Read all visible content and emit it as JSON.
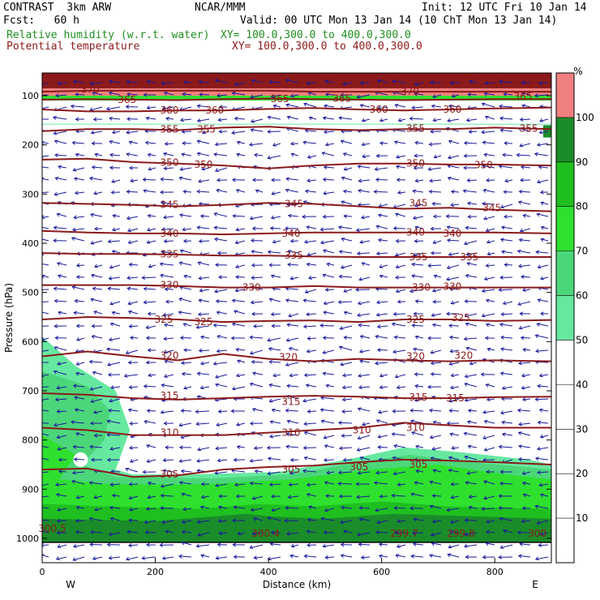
{
  "header": {
    "model": "CONTRAST  3km ARW",
    "org": "NCAR/MMM",
    "init": "Init: 12 UTC Fri 10 Jan 14",
    "fcst": "Fcst:   60 h",
    "valid": "Valid: 00 UTC Mon 13 Jan 14 (10 ChT Mon 13 Jan 14)",
    "field1": "Relative humidity (w.r.t. water)",
    "field1_xy": "XY= 100.0,300.0 to 400.0,300.0",
    "field2": "Potential temperature",
    "field2_xy": "XY= 100.0,300.0 to 400.0,300.0",
    "field1_color": "#1f8f1f",
    "field2_color": "#8b1a1a"
  },
  "chart_data": {
    "type": "cross-section",
    "xlabel": "Distance (km)",
    "ylabel": "Pressure (hPa)",
    "xlim": [
      0,
      900
    ],
    "ylim": [
      1050,
      50
    ],
    "x_ticks": [
      "0",
      "200",
      "400",
      "600",
      "800"
    ],
    "y_ticks": [
      "100",
      "200",
      "300",
      "400",
      "500",
      "600",
      "700",
      "800",
      "900",
      "1000"
    ],
    "x_end_labels": {
      "left": "W",
      "right": "E"
    },
    "colorbar": {
      "unit": "%",
      "ticks": [
        "10",
        "20",
        "30",
        "40",
        "50",
        "60",
        "70",
        "80",
        "90",
        "100"
      ],
      "bins": [
        {
          "range": [
            0,
            50
          ],
          "color": "#ffffff"
        },
        {
          "range": [
            50,
            60
          ],
          "color": "#66e8a0"
        },
        {
          "range": [
            60,
            70
          ],
          "color": "#4cd67a"
        },
        {
          "range": [
            70,
            80
          ],
          "color": "#2fe02f"
        },
        {
          "range": [
            80,
            90
          ],
          "color": "#1fbf1f"
        },
        {
          "range": [
            90,
            100
          ],
          "color": "#1a8c2a"
        },
        {
          "range": [
            100,
            110
          ],
          "color": "#f08080"
        }
      ]
    },
    "theta_contours": [
      {
        "value": 305,
        "p": [
          860,
          858,
          875,
          872,
          860,
          855,
          852,
          845,
          840,
          842,
          845,
          850
        ]
      },
      {
        "value": 310,
        "p": [
          775,
          780,
          790,
          790,
          790,
          785,
          780,
          775,
          765,
          770,
          775,
          775
        ]
      },
      {
        "value": 315,
        "p": [
          705,
          708,
          715,
          718,
          715,
          712,
          710,
          712,
          715,
          715,
          713,
          712
        ]
      },
      {
        "value": 320,
        "p": [
          630,
          620,
          630,
          638,
          625,
          635,
          640,
          635,
          638,
          640,
          638,
          640
        ]
      },
      {
        "value": 325,
        "p": [
          555,
          550,
          552,
          555,
          560,
          558,
          557,
          560,
          555,
          555,
          558,
          556
        ]
      },
      {
        "value": 330,
        "p": [
          485,
          485,
          485,
          487,
          490,
          490,
          487,
          490,
          490,
          490,
          490,
          490
        ]
      },
      {
        "value": 335,
        "p": [
          420,
          422,
          422,
          423,
          425,
          425,
          427,
          428,
          428,
          428,
          428,
          428
        ]
      },
      {
        "value": 340,
        "p": [
          375,
          378,
          380,
          380,
          382,
          380,
          378,
          378,
          378,
          378,
          378,
          380
        ]
      },
      {
        "value": 345,
        "p": [
          318,
          320,
          322,
          325,
          322,
          318,
          320,
          325,
          330,
          328,
          332,
          335
        ]
      },
      {
        "value": 350,
        "p": [
          230,
          228,
          235,
          238,
          242,
          248,
          242,
          238,
          238,
          240,
          240,
          242
        ]
      },
      {
        "value": 355,
        "p": [
          172,
          168,
          168,
          170,
          165,
          163,
          168,
          170,
          168,
          168,
          165,
          168
        ]
      },
      {
        "value": 360,
        "p": [
          128,
          132,
          132,
          130,
          130,
          127,
          125,
          128,
          130,
          128,
          126,
          124
        ]
      },
      {
        "value": 365,
        "p": [
          108,
          107,
          108,
          109,
          107,
          106,
          107,
          108,
          109,
          108,
          107,
          107
        ]
      },
      {
        "value": 370,
        "p": [
          92,
          90,
          90,
          90,
          90,
          90,
          92,
          92,
          92,
          92,
          92,
          92
        ]
      }
    ],
    "theta_contour_x_km": [
      0,
      80,
      160,
      240,
      320,
      400,
      480,
      560,
      640,
      720,
      800,
      900
    ],
    "theta_labels": [
      {
        "text": "370",
        "x": 85,
        "p": 88
      },
      {
        "text": "365",
        "x": 150,
        "p": 108
      },
      {
        "text": "365",
        "x": 420,
        "p": 107
      },
      {
        "text": "365",
        "x": 530,
        "p": 106
      },
      {
        "text": "370",
        "x": 650,
        "p": 92
      },
      {
        "text": "365",
        "x": 850,
        "p": 102
      },
      {
        "text": "360",
        "x": 225,
        "p": 130
      },
      {
        "text": "360",
        "x": 305,
        "p": 130
      },
      {
        "text": "360",
        "x": 595,
        "p": 128
      },
      {
        "text": "360",
        "x": 725,
        "p": 128
      },
      {
        "text": "355",
        "x": 225,
        "p": 168
      },
      {
        "text": "355",
        "x": 290,
        "p": 168
      },
      {
        "text": "355",
        "x": 660,
        "p": 167
      },
      {
        "text": "355",
        "x": 860,
        "p": 167
      },
      {
        "text": "350",
        "x": 225,
        "p": 236
      },
      {
        "text": "350",
        "x": 285,
        "p": 240
      },
      {
        "text": "350",
        "x": 660,
        "p": 238
      },
      {
        "text": "350",
        "x": 780,
        "p": 241
      },
      {
        "text": "345",
        "x": 225,
        "p": 322
      },
      {
        "text": "345",
        "x": 445,
        "p": 320
      },
      {
        "text": "345",
        "x": 665,
        "p": 318
      },
      {
        "text": "345",
        "x": 795,
        "p": 328
      },
      {
        "text": "340",
        "x": 225,
        "p": 380
      },
      {
        "text": "340",
        "x": 440,
        "p": 380
      },
      {
        "text": "340",
        "x": 660,
        "p": 378
      },
      {
        "text": "340",
        "x": 725,
        "p": 380
      },
      {
        "text": "335",
        "x": 225,
        "p": 422
      },
      {
        "text": "335",
        "x": 445,
        "p": 425
      },
      {
        "text": "335",
        "x": 665,
        "p": 428
      },
      {
        "text": "335",
        "x": 755,
        "p": 428
      },
      {
        "text": "330",
        "x": 225,
        "p": 485
      },
      {
        "text": "330",
        "x": 370,
        "p": 490
      },
      {
        "text": "330",
        "x": 670,
        "p": 490
      },
      {
        "text": "330",
        "x": 725,
        "p": 488
      },
      {
        "text": "325",
        "x": 215,
        "p": 555
      },
      {
        "text": "325",
        "x": 285,
        "p": 560
      },
      {
        "text": "325",
        "x": 660,
        "p": 555
      },
      {
        "text": "325",
        "x": 740,
        "p": 552
      },
      {
        "text": "320",
        "x": 225,
        "p": 628
      },
      {
        "text": "320",
        "x": 435,
        "p": 632
      },
      {
        "text": "320",
        "x": 660,
        "p": 630
      },
      {
        "text": "320",
        "x": 745,
        "p": 628
      },
      {
        "text": "315",
        "x": 225,
        "p": 710
      },
      {
        "text": "315",
        "x": 440,
        "p": 722
      },
      {
        "text": "315",
        "x": 665,
        "p": 713
      },
      {
        "text": "315",
        "x": 730,
        "p": 715
      },
      {
        "text": "310",
        "x": 225,
        "p": 785
      },
      {
        "text": "310",
        "x": 440,
        "p": 785
      },
      {
        "text": "310",
        "x": 565,
        "p": 780
      },
      {
        "text": "310",
        "x": 660,
        "p": 775
      },
      {
        "text": "305",
        "x": 225,
        "p": 870
      },
      {
        "text": "305",
        "x": 440,
        "p": 860
      },
      {
        "text": "305",
        "x": 560,
        "p": 855
      },
      {
        "text": "305",
        "x": 665,
        "p": 850
      },
      {
        "text": "300.5",
        "x": 18,
        "p": 980
      },
      {
        "text": "300.4",
        "x": 395,
        "p": 990
      },
      {
        "text": "299.7",
        "x": 640,
        "p": 990
      },
      {
        "text": "299.8",
        "x": 740,
        "p": 990
      },
      {
        "text": "300",
        "x": 875,
        "p": 990
      }
    ],
    "grid": false,
    "legend": "right"
  }
}
